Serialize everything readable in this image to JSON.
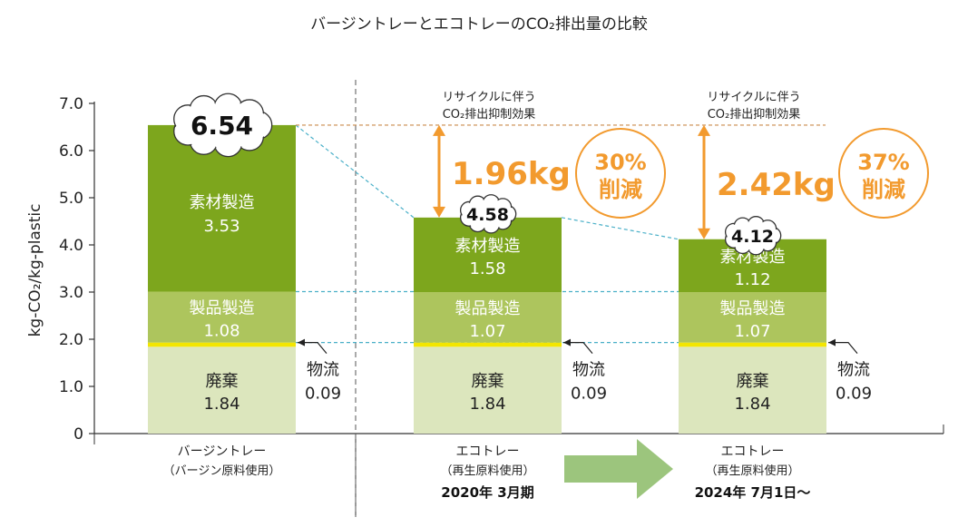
{
  "chart_data": {
    "type": "bar",
    "title": "バージントレーとエコトレーのCO₂排出量の比較",
    "ylabel": "kg-CO₂/kg-plastic",
    "ylim": [
      0,
      7
    ],
    "yticks": [
      "0",
      "1.0",
      "2.0",
      "3.0",
      "4.0",
      "5.0",
      "6.0",
      "7.0"
    ],
    "series_names": [
      "廃棄",
      "物流",
      "製品製造",
      "素材製造"
    ],
    "bars": [
      {
        "category": "バージントレー",
        "subtitle": "（バージン原料使用）",
        "date": "",
        "total": "6.54",
        "segments": [
          {
            "name": "廃棄",
            "value": 1.84,
            "label": "1.84"
          },
          {
            "name": "物流",
            "value": 0.09,
            "label": "0.09"
          },
          {
            "name": "製品製造",
            "value": 1.08,
            "label": "1.08"
          },
          {
            "name": "素材製造",
            "value": 3.53,
            "label": "3.53"
          }
        ]
      },
      {
        "category": "エコトレー",
        "subtitle": "（再生原料使用）",
        "date": "2020年 3月期",
        "total": "4.58",
        "segments": [
          {
            "name": "廃棄",
            "value": 1.84,
            "label": "1.84"
          },
          {
            "name": "物流",
            "value": 0.09,
            "label": "0.09"
          },
          {
            "name": "製品製造",
            "value": 1.07,
            "label": "1.07"
          },
          {
            "name": "素材製造",
            "value": 1.58,
            "label": "1.58"
          }
        ],
        "reduction": {
          "caption1": "リサイクルに伴う",
          "caption2": "CO₂排出抑制効果",
          "amount": "1.96kg",
          "percent": "30%",
          "percent_label": "削減"
        }
      },
      {
        "category": "エコトレー",
        "subtitle": "（再生原料使用）",
        "date": "2024年 7月1日〜",
        "total": "4.12",
        "segments": [
          {
            "name": "廃棄",
            "value": 1.84,
            "label": "1.84"
          },
          {
            "name": "物流",
            "value": 0.09,
            "label": "0.09"
          },
          {
            "name": "製品製造",
            "value": 1.07,
            "label": "1.07"
          },
          {
            "name": "素材製造",
            "value": 1.12,
            "label": "1.12"
          }
        ],
        "reduction": {
          "caption1": "リサイクルに伴う",
          "caption2": "CO₂排出抑制効果",
          "amount": "2.42kg",
          "percent": "37%",
          "percent_label": "削減"
        }
      }
    ]
  },
  "colors": {
    "material": "#7da61d",
    "product": "#adc55d",
    "waste": "#dce6bd",
    "logistics": "#f3e600",
    "orange": "#f29a2e",
    "dashed_blue": "#4ab0c8",
    "dashed_orange": "#c98a4a",
    "arrow": "#9cc57d",
    "text": "#222222"
  }
}
